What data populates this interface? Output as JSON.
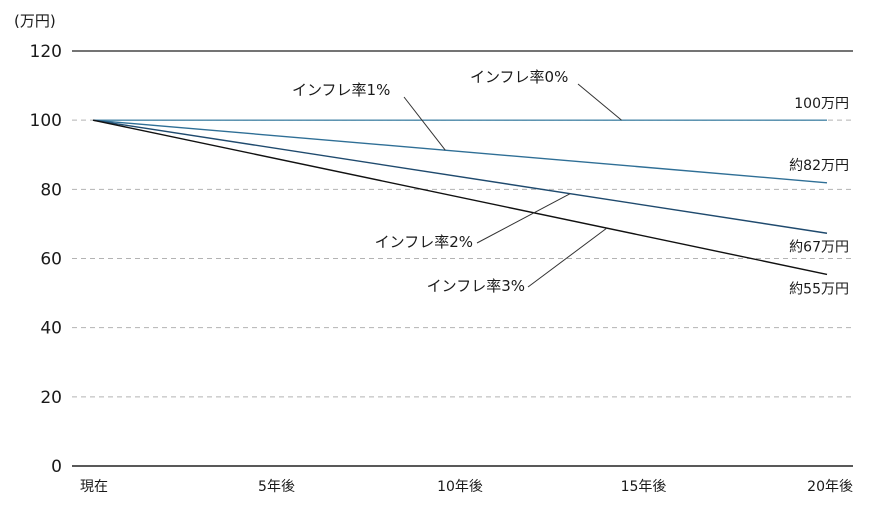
{
  "chart_data": {
    "type": "line",
    "unit_label": "(万円)",
    "x_categories": [
      "現在",
      "5年後",
      "10年後",
      "15年後",
      "20年後"
    ],
    "x_range": [
      0,
      20
    ],
    "ylim": [
      0,
      120
    ],
    "y_ticks": [
      0,
      20,
      40,
      60,
      80,
      100,
      120
    ],
    "grid": "dashed horizontal at 20,40,60,80,100; solid at 120",
    "series": [
      {
        "name": "インフレ率0%",
        "color": "#4a87a8",
        "x": [
          0,
          20
        ],
        "values": [
          100,
          100
        ],
        "end_label": "100万円"
      },
      {
        "name": "インフレ率1%",
        "color": "#2f6f96",
        "x": [
          0,
          20
        ],
        "values": [
          100,
          81.9
        ],
        "end_label": "約82万円"
      },
      {
        "name": "インフレ率2%",
        "color": "#1f4a6e",
        "x": [
          0,
          20
        ],
        "values": [
          100,
          67.3
        ],
        "end_label": "約67万円"
      },
      {
        "name": "インフレ率3%",
        "color": "#111111",
        "x": [
          0,
          20
        ],
        "values": [
          100,
          55.4
        ],
        "end_label": "約55万円"
      }
    ]
  }
}
